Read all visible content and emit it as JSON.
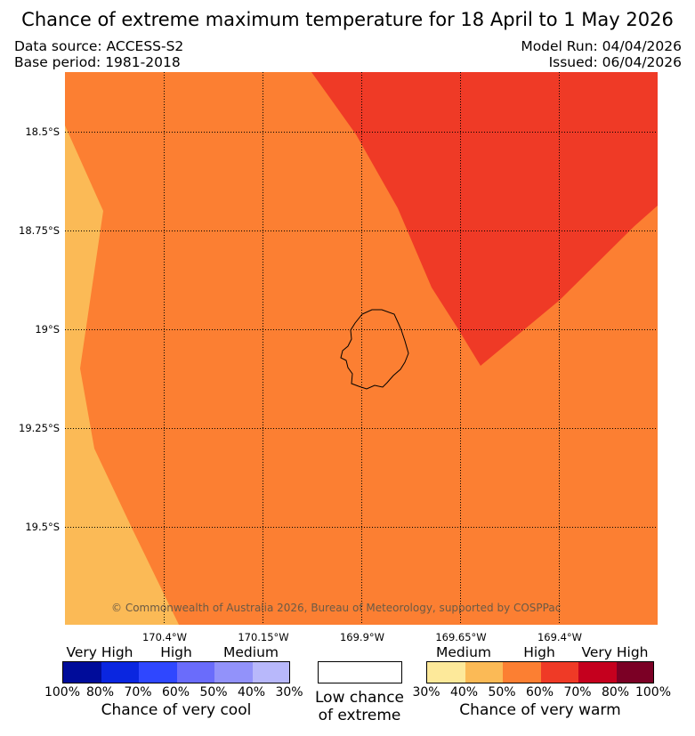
{
  "title": "Chance of extreme maximum temperature for 18 April to 1 May 2026",
  "data_source": "Data source: ACCESS-S2",
  "base_period": "Base period: 1981-2018",
  "model_run": "Model Run: 04/04/2026",
  "issued": "Issued: 06/04/2026",
  "map": {
    "lat_labels": [
      "18.5°S",
      "18.75°S",
      "19°S",
      "19.25°S",
      "19.5°S"
    ],
    "lon_labels": [
      "170.4°W",
      "170.15°W",
      "169.9°W",
      "169.65°W",
      "169.4°W"
    ],
    "copyright": "© Commonwealth of Australia 2026, Bureau of Meteorology, supported by COSPPac",
    "colors": {
      "medium_warm": "#fbba56",
      "high_warm": "#fc7f32",
      "high_warm_60": "#ef3a26"
    }
  },
  "legend": {
    "cool": {
      "categories": [
        "Very High",
        "High",
        "Medium"
      ],
      "ticks": [
        "100%",
        "80%",
        "70%",
        "60%",
        "50%",
        "40%",
        "30%"
      ],
      "colors": [
        "#000c9a",
        "#0a26e0",
        "#2f47ff",
        "#6a6cfb",
        "#9292fa",
        "#b8b8fb"
      ],
      "caption": "Chance of very cool"
    },
    "low": {
      "caption_line1": "Low chance",
      "caption_line2": "of extreme"
    },
    "warm": {
      "categories": [
        "Medium",
        "High",
        "Very High"
      ],
      "ticks": [
        "30%",
        "40%",
        "50%",
        "60%",
        "70%",
        "80%",
        "100%"
      ],
      "colors": [
        "#fde99a",
        "#fbba56",
        "#fc7f32",
        "#ef3a26",
        "#c5001e",
        "#7b0025"
      ],
      "caption": "Chance of very warm"
    }
  }
}
